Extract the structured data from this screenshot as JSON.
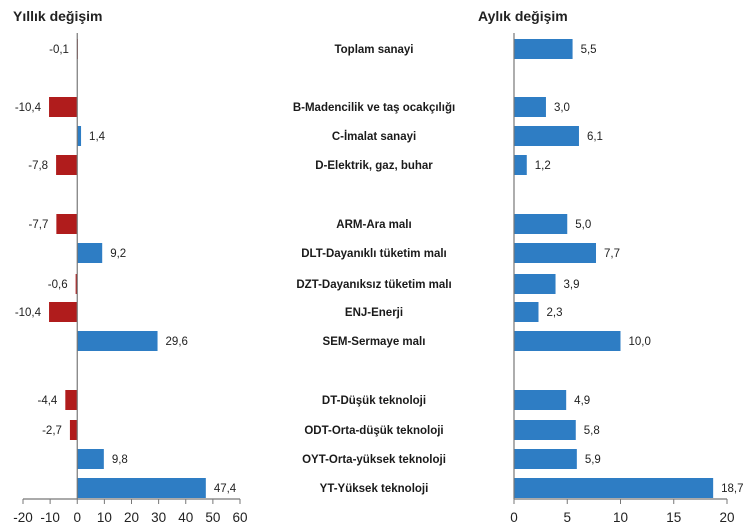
{
  "chart_data": [
    {
      "type": "bar",
      "orientation": "horizontal",
      "title": "Yıllık değişim",
      "xlabel": "",
      "ylabel": "",
      "xlim": [
        -20,
        60
      ],
      "xticks": [
        "-20",
        "-10",
        "0",
        "10",
        "20",
        "30",
        "40",
        "50",
        "60"
      ],
      "grid": false,
      "positive_color": "#2e7dc4",
      "negative_color": "#b01c1c",
      "values": [
        -0.1,
        -10.4,
        1.4,
        -7.8,
        -7.7,
        9.2,
        -0.6,
        -10.4,
        29.6,
        -4.4,
        -2.7,
        9.8,
        47.4
      ],
      "labels": [
        "-0,1",
        "-10,4",
        "1,4",
        "-7,8",
        "-7,7",
        "9,2",
        "-0,6",
        "-10,4",
        "29,6",
        "-4,4",
        "-2,7",
        "9,8",
        "47,4"
      ]
    },
    {
      "type": "bar",
      "orientation": "horizontal",
      "title": "Aylık değişim",
      "xlabel": "",
      "ylabel": "",
      "xlim": [
        0,
        20
      ],
      "xticks": [
        "0",
        "5",
        "10",
        "15",
        "20"
      ],
      "grid": false,
      "positive_color": "#2e7dc4",
      "values": [
        5.5,
        3.0,
        6.1,
        1.2,
        5.0,
        7.7,
        3.9,
        2.3,
        10.0,
        4.9,
        5.8,
        5.9,
        18.7
      ],
      "labels": [
        "5,5",
        "3,0",
        "6,1",
        "1,2",
        "5,0",
        "7,7",
        "3,9",
        "2,3",
        "10,0",
        "4,9",
        "5,8",
        "5,9",
        "18,7"
      ]
    }
  ],
  "categories": [
    "Toplam sanayi",
    "B-Madencilik ve taş ocakçılığı",
    "C-İmalat sanayi",
    "D-Elektrik, gaz, buhar",
    "ARM-Ara malı",
    "DLT-Dayanıklı tüketim malı",
    "DZT-Dayanıksız tüketim malı",
    "ENJ-Enerji",
    "SEM-Sermaye malı",
    "DT-Düşük teknoloji",
    "ODT-Orta-düşük teknoloji",
    "OYT-Orta-yüksek teknoloji",
    "YT-Yüksek teknoloji"
  ]
}
